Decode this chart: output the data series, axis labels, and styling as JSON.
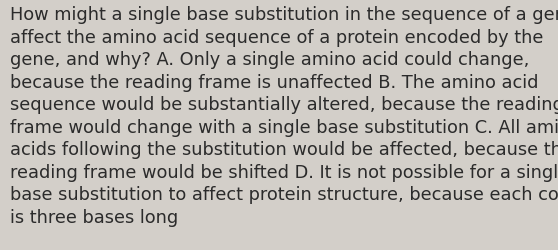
{
  "background_color": "#d3cfc9",
  "text_color": "#2b2b2b",
  "font_size": 12.8,
  "font_family": "DejaVu Sans",
  "lines": [
    "How might a single base substitution in the sequence of a gene",
    "affect the amino acid sequence of a protein encoded by the",
    "gene, and why? A. Only a single amino acid could change,",
    "because the reading frame is unaffected B. The amino acid",
    "sequence would be substantially altered, because the reading",
    "frame would change with a single base substitution C. All amino",
    "acids following the substitution would be affected, because the",
    "reading frame would be shifted D. It is not possible for a single",
    "base substitution to affect protein structure, because each codon",
    "is three bases long"
  ],
  "fig_width": 5.58,
  "fig_height": 2.51,
  "dpi": 100
}
